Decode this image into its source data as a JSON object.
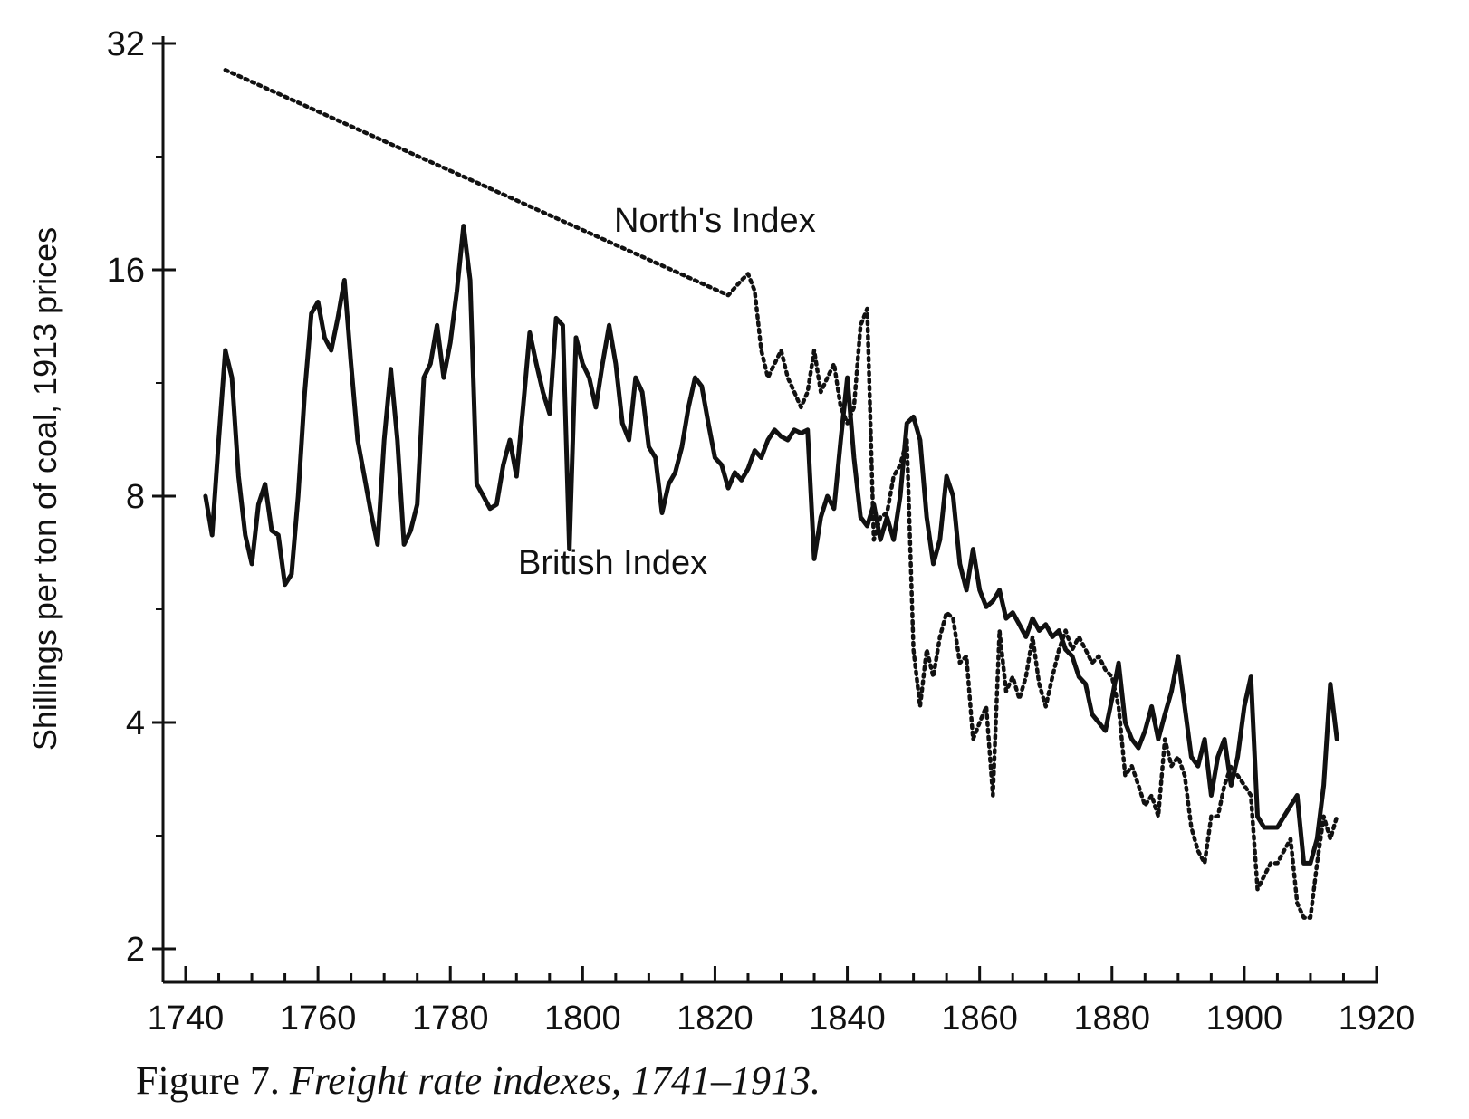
{
  "caption": {
    "prefix": "Figure 7.",
    "title": "Freight rate indexes, 1741–1913."
  },
  "chart_data": {
    "type": "line",
    "ylabel": "Shillings per ton of coal, 1913 prices",
    "xlabel": "",
    "xlim": [
      1740,
      1920
    ],
    "ylim": [
      2,
      32
    ],
    "y_scale": "log2",
    "grid": false,
    "x_ticks": [
      1740,
      1760,
      1780,
      1800,
      1820,
      1840,
      1860,
      1880,
      1900,
      1920
    ],
    "y_ticks": [
      2,
      4,
      8,
      16,
      32
    ],
    "series": [
      {
        "name": "British Index",
        "style": "solid",
        "color": "#111111",
        "points": [
          [
            1743,
            8.0
          ],
          [
            1744,
            7.1
          ],
          [
            1745,
            9.5
          ],
          [
            1746,
            12.5
          ],
          [
            1747,
            11.5
          ],
          [
            1748,
            8.5
          ],
          [
            1749,
            7.1
          ],
          [
            1750,
            6.5
          ],
          [
            1751,
            7.8
          ],
          [
            1752,
            8.3
          ],
          [
            1753,
            7.2
          ],
          [
            1754,
            7.1
          ],
          [
            1755,
            6.1
          ],
          [
            1756,
            6.3
          ],
          [
            1757,
            8.0
          ],
          [
            1758,
            11.0
          ],
          [
            1759,
            14.0
          ],
          [
            1760,
            14.5
          ],
          [
            1761,
            13.0
          ],
          [
            1762,
            12.5
          ],
          [
            1763,
            13.8
          ],
          [
            1764,
            15.5
          ],
          [
            1765,
            12.0
          ],
          [
            1766,
            9.5
          ],
          [
            1767,
            8.5
          ],
          [
            1768,
            7.6
          ],
          [
            1769,
            6.9
          ],
          [
            1770,
            9.5
          ],
          [
            1771,
            11.8
          ],
          [
            1772,
            9.5
          ],
          [
            1773,
            6.9
          ],
          [
            1774,
            7.2
          ],
          [
            1775,
            7.8
          ],
          [
            1776,
            11.5
          ],
          [
            1777,
            12.0
          ],
          [
            1778,
            13.5
          ],
          [
            1779,
            11.5
          ],
          [
            1780,
            12.8
          ],
          [
            1781,
            15.0
          ],
          [
            1782,
            18.3
          ],
          [
            1783,
            15.5
          ],
          [
            1784,
            8.3
          ],
          [
            1785,
            8.0
          ],
          [
            1786,
            7.7
          ],
          [
            1787,
            7.8
          ],
          [
            1788,
            8.8
          ],
          [
            1789,
            9.5
          ],
          [
            1790,
            8.5
          ],
          [
            1791,
            10.5
          ],
          [
            1792,
            13.2
          ],
          [
            1793,
            12.0
          ],
          [
            1794,
            11.0
          ],
          [
            1795,
            10.3
          ],
          [
            1796,
            13.8
          ],
          [
            1797,
            13.5
          ],
          [
            1798,
            6.8
          ],
          [
            1799,
            13.0
          ],
          [
            1800,
            12.0
          ],
          [
            1801,
            11.5
          ],
          [
            1802,
            10.5
          ],
          [
            1803,
            12.0
          ],
          [
            1804,
            13.5
          ],
          [
            1805,
            12.0
          ],
          [
            1806,
            10.0
          ],
          [
            1807,
            9.5
          ],
          [
            1808,
            11.5
          ],
          [
            1809,
            11.0
          ],
          [
            1810,
            9.3
          ],
          [
            1811,
            9.0
          ],
          [
            1812,
            7.6
          ],
          [
            1813,
            8.3
          ],
          [
            1814,
            8.6
          ],
          [
            1815,
            9.3
          ],
          [
            1816,
            10.5
          ],
          [
            1817,
            11.5
          ],
          [
            1818,
            11.2
          ],
          [
            1819,
            10.0
          ],
          [
            1820,
            9.0
          ],
          [
            1821,
            8.8
          ],
          [
            1822,
            8.2
          ],
          [
            1823,
            8.6
          ],
          [
            1824,
            8.4
          ],
          [
            1825,
            8.7
          ],
          [
            1826,
            9.2
          ],
          [
            1827,
            9.0
          ],
          [
            1828,
            9.5
          ],
          [
            1829,
            9.8
          ],
          [
            1830,
            9.6
          ],
          [
            1831,
            9.5
          ],
          [
            1832,
            9.8
          ],
          [
            1833,
            9.7
          ],
          [
            1834,
            9.8
          ],
          [
            1835,
            6.6
          ],
          [
            1836,
            7.5
          ],
          [
            1837,
            8.0
          ],
          [
            1838,
            7.7
          ],
          [
            1839,
            9.5
          ],
          [
            1840,
            11.5
          ],
          [
            1841,
            9.0
          ],
          [
            1842,
            7.5
          ],
          [
            1843,
            7.3
          ],
          [
            1844,
            7.8
          ],
          [
            1845,
            7.0
          ],
          [
            1846,
            7.5
          ],
          [
            1847,
            7.0
          ],
          [
            1848,
            8.0
          ],
          [
            1849,
            10.0
          ],
          [
            1850,
            10.2
          ],
          [
            1851,
            9.5
          ],
          [
            1852,
            7.5
          ],
          [
            1853,
            6.5
          ],
          [
            1854,
            7.0
          ],
          [
            1855,
            8.5
          ],
          [
            1856,
            8.0
          ],
          [
            1857,
            6.5
          ],
          [
            1858,
            6.0
          ],
          [
            1859,
            6.8
          ],
          [
            1860,
            6.0
          ],
          [
            1861,
            5.7
          ],
          [
            1862,
            5.8
          ],
          [
            1863,
            6.0
          ],
          [
            1864,
            5.5
          ],
          [
            1865,
            5.6
          ],
          [
            1866,
            5.4
          ],
          [
            1867,
            5.2
          ],
          [
            1868,
            5.5
          ],
          [
            1869,
            5.3
          ],
          [
            1870,
            5.4
          ],
          [
            1871,
            5.2
          ],
          [
            1872,
            5.3
          ],
          [
            1873,
            5.0
          ],
          [
            1874,
            4.9
          ],
          [
            1875,
            4.6
          ],
          [
            1876,
            4.5
          ],
          [
            1877,
            4.1
          ],
          [
            1878,
            4.0
          ],
          [
            1879,
            3.9
          ],
          [
            1880,
            4.3
          ],
          [
            1881,
            4.8
          ],
          [
            1882,
            4.0
          ],
          [
            1883,
            3.8
          ],
          [
            1884,
            3.7
          ],
          [
            1885,
            3.9
          ],
          [
            1886,
            4.2
          ],
          [
            1887,
            3.8
          ],
          [
            1888,
            4.1
          ],
          [
            1889,
            4.4
          ],
          [
            1890,
            4.9
          ],
          [
            1891,
            4.2
          ],
          [
            1892,
            3.6
          ],
          [
            1893,
            3.5
          ],
          [
            1894,
            3.8
          ],
          [
            1895,
            3.2
          ],
          [
            1896,
            3.6
          ],
          [
            1897,
            3.8
          ],
          [
            1898,
            3.3
          ],
          [
            1899,
            3.6
          ],
          [
            1900,
            4.2
          ],
          [
            1901,
            4.6
          ],
          [
            1902,
            3.0
          ],
          [
            1903,
            2.9
          ],
          [
            1904,
            2.9
          ],
          [
            1905,
            2.9
          ],
          [
            1906,
            3.0
          ],
          [
            1907,
            3.1
          ],
          [
            1908,
            3.2
          ],
          [
            1909,
            2.6
          ],
          [
            1910,
            2.6
          ],
          [
            1911,
            2.8
          ],
          [
            1912,
            3.3
          ],
          [
            1913,
            4.5
          ],
          [
            1914,
            3.8
          ]
        ]
      },
      {
        "name": "North's Index",
        "style": "dotted",
        "color": "#111111",
        "points": [
          [
            1746,
            29.5
          ],
          [
            1822,
            14.8
          ],
          [
            1824,
            15.5
          ],
          [
            1825,
            15.8
          ],
          [
            1826,
            15.0
          ],
          [
            1827,
            12.5
          ],
          [
            1828,
            11.5
          ],
          [
            1829,
            12.0
          ],
          [
            1830,
            12.5
          ],
          [
            1831,
            11.5
          ],
          [
            1832,
            11.0
          ],
          [
            1833,
            10.5
          ],
          [
            1834,
            11.0
          ],
          [
            1835,
            12.5
          ],
          [
            1836,
            11.0
          ],
          [
            1837,
            11.5
          ],
          [
            1838,
            12.0
          ],
          [
            1839,
            10.5
          ],
          [
            1840,
            10.0
          ],
          [
            1841,
            10.5
          ],
          [
            1842,
            13.5
          ],
          [
            1843,
            14.2
          ],
          [
            1844,
            7.0
          ],
          [
            1845,
            7.5
          ],
          [
            1846,
            7.6
          ],
          [
            1847,
            8.5
          ],
          [
            1848,
            8.8
          ],
          [
            1849,
            9.5
          ],
          [
            1850,
            5.0
          ],
          [
            1851,
            4.2
          ],
          [
            1852,
            5.0
          ],
          [
            1853,
            4.6
          ],
          [
            1854,
            5.2
          ],
          [
            1855,
            5.6
          ],
          [
            1856,
            5.5
          ],
          [
            1857,
            4.8
          ],
          [
            1858,
            4.9
          ],
          [
            1859,
            3.8
          ],
          [
            1860,
            4.0
          ],
          [
            1861,
            4.2
          ],
          [
            1862,
            3.2
          ],
          [
            1863,
            5.3
          ],
          [
            1864,
            4.4
          ],
          [
            1865,
            4.6
          ],
          [
            1866,
            4.3
          ],
          [
            1867,
            4.6
          ],
          [
            1868,
            5.2
          ],
          [
            1869,
            4.5
          ],
          [
            1870,
            4.2
          ],
          [
            1871,
            4.6
          ],
          [
            1872,
            5.0
          ],
          [
            1873,
            5.3
          ],
          [
            1874,
            5.0
          ],
          [
            1875,
            5.2
          ],
          [
            1876,
            5.0
          ],
          [
            1877,
            4.8
          ],
          [
            1878,
            4.9
          ],
          [
            1879,
            4.7
          ],
          [
            1880,
            4.6
          ],
          [
            1881,
            4.2
          ],
          [
            1882,
            3.4
          ],
          [
            1883,
            3.5
          ],
          [
            1884,
            3.3
          ],
          [
            1885,
            3.1
          ],
          [
            1886,
            3.2
          ],
          [
            1887,
            3.0
          ],
          [
            1888,
            3.8
          ],
          [
            1889,
            3.5
          ],
          [
            1890,
            3.6
          ],
          [
            1891,
            3.4
          ],
          [
            1892,
            2.9
          ],
          [
            1893,
            2.7
          ],
          [
            1894,
            2.6
          ],
          [
            1895,
            3.0
          ],
          [
            1896,
            3.0
          ],
          [
            1897,
            3.3
          ],
          [
            1898,
            3.5
          ],
          [
            1899,
            3.4
          ],
          [
            1900,
            3.3
          ],
          [
            1901,
            3.2
          ],
          [
            1902,
            2.4
          ],
          [
            1903,
            2.5
          ],
          [
            1904,
            2.6
          ],
          [
            1905,
            2.6
          ],
          [
            1906,
            2.7
          ],
          [
            1907,
            2.8
          ],
          [
            1908,
            2.3
          ],
          [
            1909,
            2.2
          ],
          [
            1910,
            2.2
          ],
          [
            1911,
            2.6
          ],
          [
            1912,
            3.0
          ],
          [
            1913,
            2.8
          ],
          [
            1914,
            3.0
          ]
        ]
      }
    ],
    "annotations": [
      {
        "text": "North's Index",
        "series": "North's Index"
      },
      {
        "text": "British Index",
        "series": "British Index"
      }
    ]
  }
}
